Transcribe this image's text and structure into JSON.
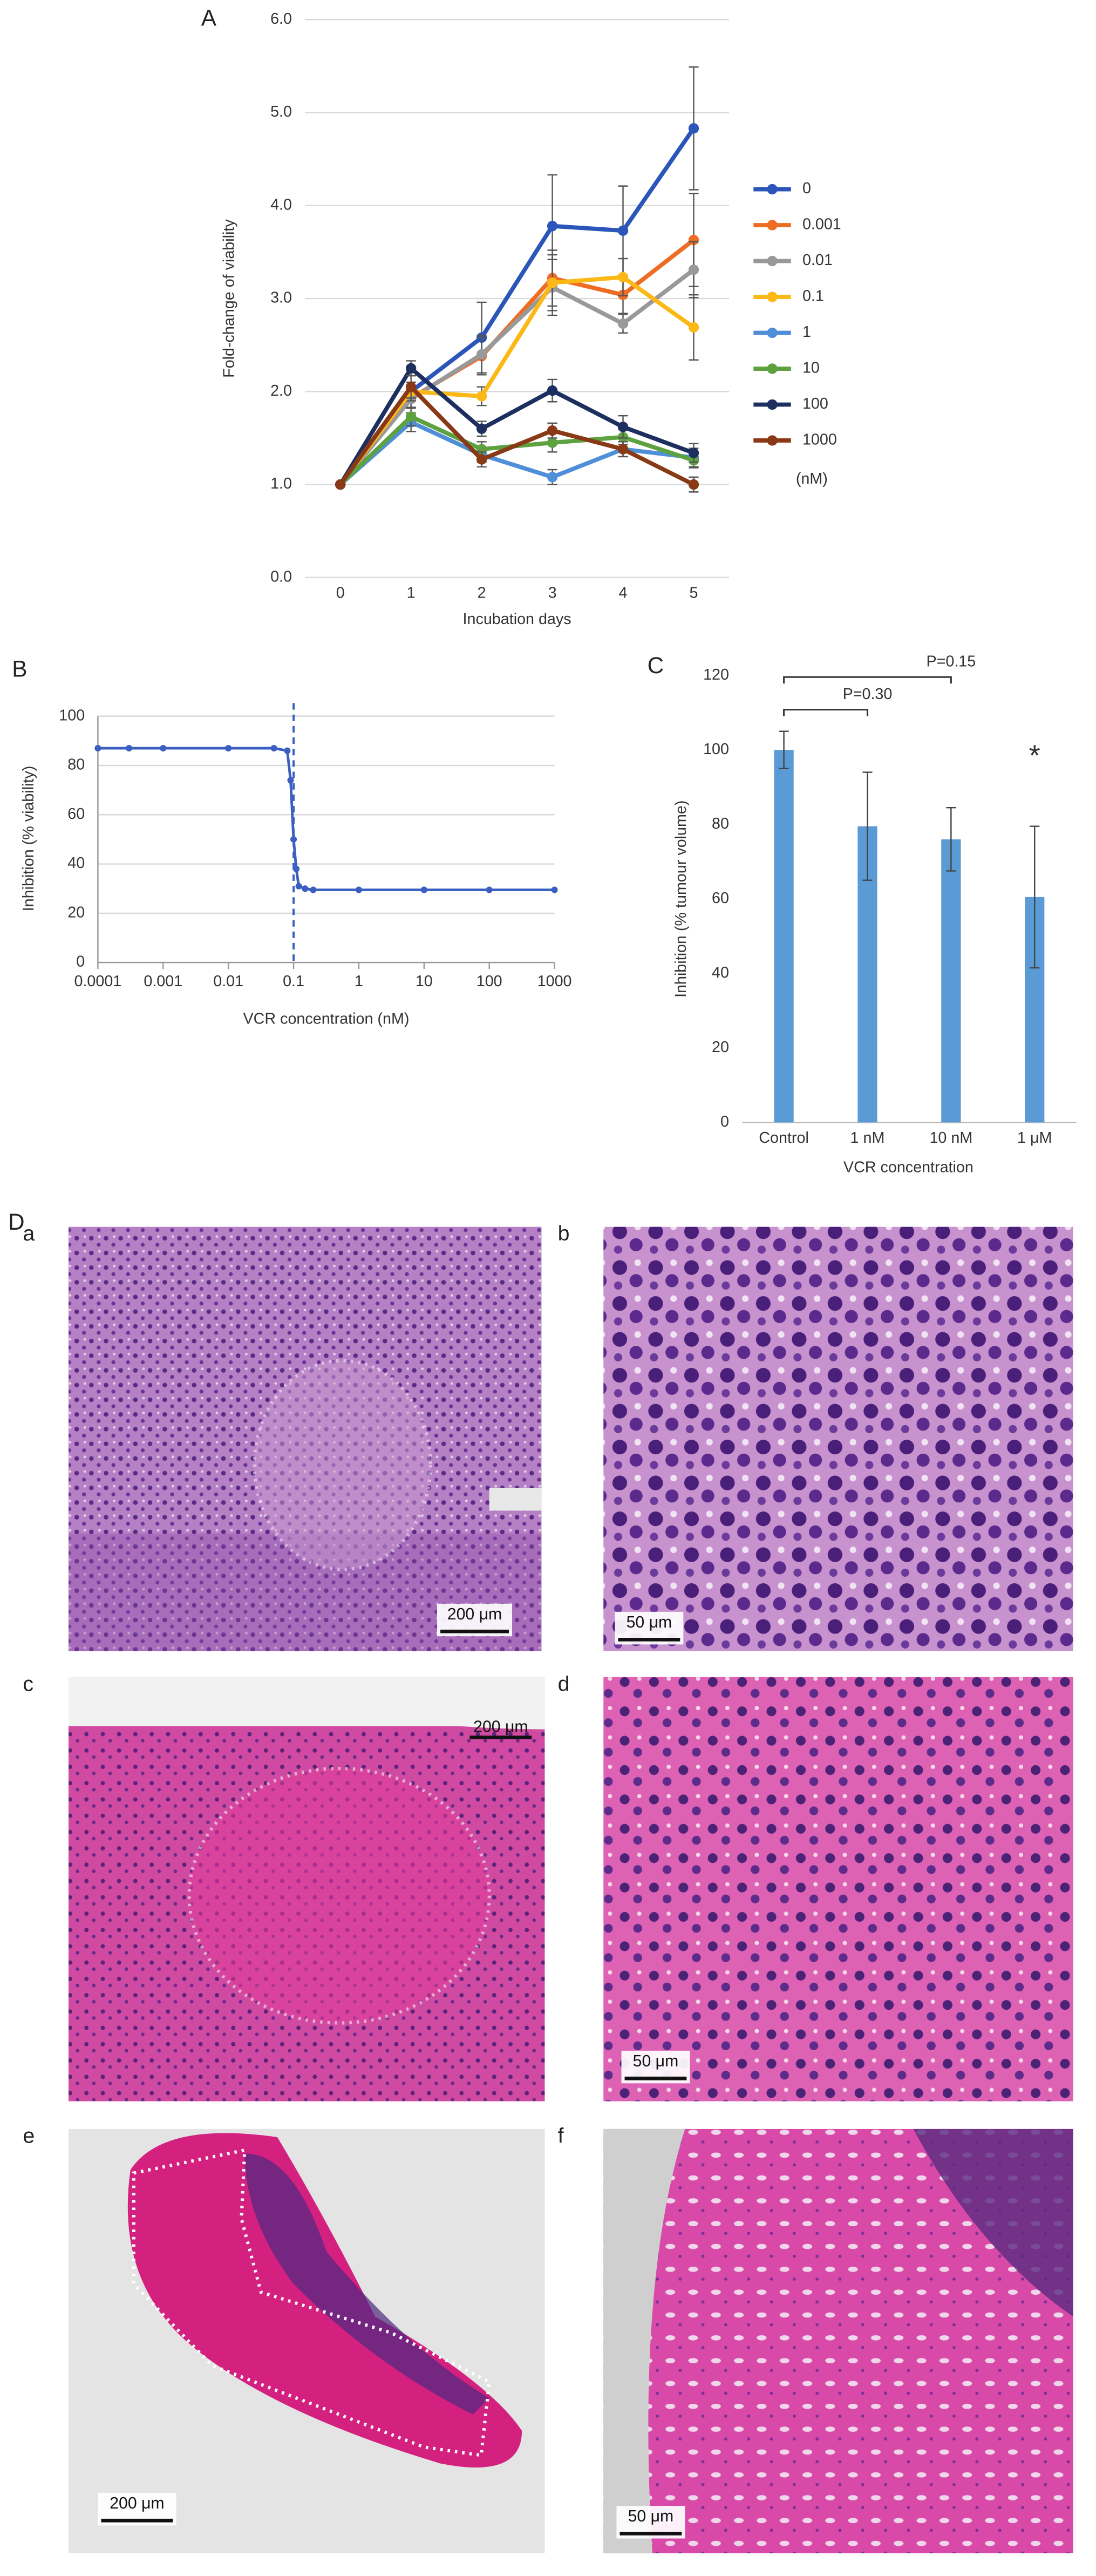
{
  "chart_data": [
    {
      "type": "line",
      "panel": "A",
      "x_label": "Incubation days",
      "y_label": "Fold-change of viability",
      "x": [
        0,
        1,
        2,
        3,
        4,
        5
      ],
      "xlim": [
        -0.5,
        5.5
      ],
      "xticks": [
        0,
        1,
        2,
        3,
        4,
        5
      ],
      "ylim": [
        0,
        6
      ],
      "yticks": [
        {
          "value": 0,
          "label": "0.0"
        },
        {
          "value": 1,
          "label": "1.0"
        },
        {
          "value": 2,
          "label": "2.0"
        },
        {
          "value": 3,
          "label": "3.0"
        },
        {
          "value": 4,
          "label": "4.0"
        },
        {
          "value": 5,
          "label": "5.0"
        },
        {
          "value": 6,
          "label": "6.0"
        }
      ],
      "grid": true,
      "legend": "right",
      "legend_note": "(nM)",
      "series": [
        {
          "name": "0",
          "color": "#2b55b8",
          "values": [
            1.0,
            2.0,
            2.58,
            3.78,
            3.73,
            4.83
          ],
          "errors": [
            0,
            0.1,
            0.38,
            0.55,
            0.48,
            0.66
          ]
        },
        {
          "name": "0.001",
          "color": "#ef6c23",
          "values": [
            1.0,
            1.93,
            2.38,
            3.22,
            3.04,
            3.63
          ],
          "errors": [
            0,
            0.1,
            0.2,
            0.3,
            0.2,
            0.5
          ]
        },
        {
          "name": "0.01",
          "color": "#999999",
          "values": [
            1.0,
            1.92,
            2.4,
            3.12,
            2.73,
            3.31
          ],
          "errors": [
            0,
            0.1,
            0.2,
            0.3,
            0.1,
            0.3
          ]
        },
        {
          "name": "0.1",
          "color": "#fbb817",
          "values": [
            1.0,
            2.0,
            1.95,
            3.17,
            3.23,
            2.69
          ],
          "errors": [
            0,
            0.1,
            0.1,
            0.3,
            0.2,
            0.35
          ]
        },
        {
          "name": "1",
          "color": "#4e8fd8",
          "values": [
            1.0,
            1.67,
            1.32,
            1.08,
            1.38,
            1.29
          ],
          "errors": [
            0,
            0.1,
            0.08,
            0.08,
            0.08,
            0.1
          ]
        },
        {
          "name": "10",
          "color": "#5da23f",
          "values": [
            1.0,
            1.73,
            1.38,
            1.45,
            1.51,
            1.26
          ],
          "errors": [
            0,
            0.1,
            0.08,
            0.1,
            0.08,
            0.08
          ]
        },
        {
          "name": "100",
          "color": "#1d2f5f",
          "values": [
            1.0,
            2.25,
            1.6,
            2.01,
            1.62,
            1.34
          ],
          "errors": [
            0,
            0.08,
            0.08,
            0.12,
            0.12,
            0.1
          ]
        },
        {
          "name": "1000",
          "color": "#8a3916",
          "values": [
            1.0,
            2.05,
            1.27,
            1.58,
            1.38,
            1.0
          ],
          "errors": [
            0,
            0.12,
            0.08,
            0.08,
            0.08,
            0.08
          ]
        }
      ]
    },
    {
      "type": "line",
      "panel": "B",
      "x_label": "VCR concentration (nM)",
      "y_label": "Inhibition (% viability)",
      "xscale": "log",
      "x": [
        0.0001,
        0.0003,
        0.001,
        0.01,
        0.05,
        0.08,
        0.09,
        0.1,
        0.11,
        0.12,
        0.15,
        0.2,
        1,
        10,
        100,
        1000
      ],
      "xlim": [
        0.0001,
        1000
      ],
      "xticks": [
        0.0001,
        0.001,
        0.01,
        0.1,
        1,
        10,
        100,
        1000
      ],
      "ylim": [
        0,
        100
      ],
      "yticks": [
        0,
        20,
        40,
        60,
        80,
        100
      ],
      "grid": true,
      "vline": 0.1,
      "series": [
        {
          "color": "#3a5fc0",
          "values": [
            87,
            87,
            87,
            87,
            87,
            86,
            74,
            50,
            38,
            31,
            30,
            29.5,
            29.5,
            29.5,
            29.5,
            29.5
          ]
        }
      ]
    },
    {
      "type": "bar",
      "panel": "C",
      "x_label": "VCR concentration",
      "y_label": "Inhibition (% tumour volume)",
      "categories": [
        "Control",
        "1 nM",
        "10 nM",
        "1 μM"
      ],
      "values": [
        100,
        79.5,
        76,
        60.5
      ],
      "errors": [
        5,
        14.5,
        8.5,
        19
      ],
      "color": "#5b9bd5",
      "ylim": [
        0,
        120
      ],
      "yticks": [
        0,
        20,
        40,
        60,
        80,
        100,
        120
      ],
      "grid": false,
      "brackets": [
        {
          "from": 0,
          "to": 1,
          "label": "P=0.30"
        },
        {
          "from": 0,
          "to": 2,
          "label": "P=0.15"
        }
      ],
      "markers": [
        {
          "category": 3,
          "label": "*"
        }
      ]
    }
  ],
  "panel_d": {
    "label": "D",
    "images": [
      {
        "label": "a",
        "scale_bar": "200 μm"
      },
      {
        "label": "b",
        "scale_bar": "50 μm"
      },
      {
        "label": "c",
        "scale_bar": "200 μm"
      },
      {
        "label": "d",
        "scale_bar": "50 μm"
      },
      {
        "label": "e",
        "scale_bar": "200 μm"
      },
      {
        "label": "f",
        "scale_bar": "50 μm"
      }
    ]
  }
}
